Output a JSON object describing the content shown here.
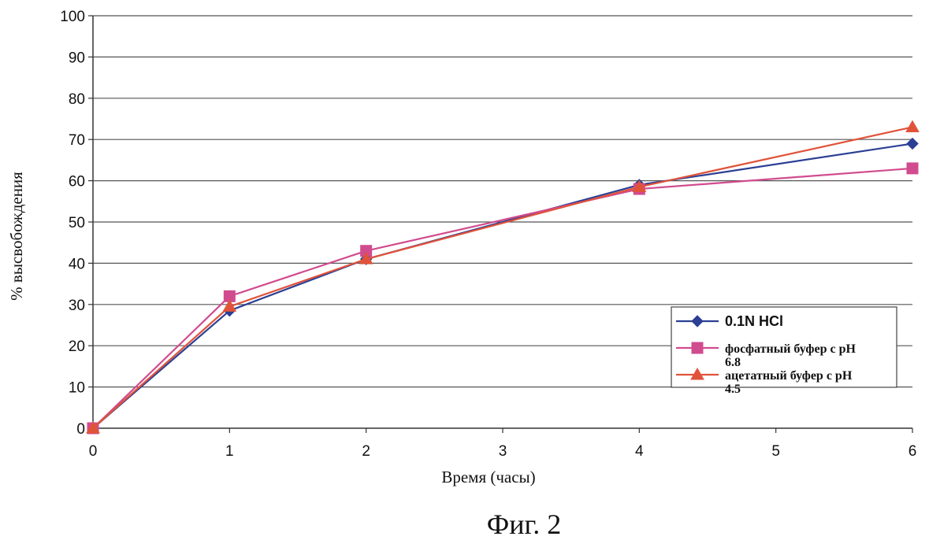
{
  "figure_caption": "Фиг. 2",
  "chart_data": {
    "type": "line",
    "xlabel": "Время (часы)",
    "ylabel": "% высвобождения",
    "xlim": [
      0,
      6
    ],
    "ylim": [
      0,
      100
    ],
    "xticks": [
      0,
      1,
      2,
      3,
      4,
      5,
      6
    ],
    "yticks": [
      0,
      10,
      20,
      30,
      40,
      50,
      60,
      70,
      80,
      90,
      100
    ],
    "grid": true,
    "legend_position": "right",
    "series": [
      {
        "name": "0.1N HCl",
        "color": "#2b3f94",
        "marker": "diamond",
        "x": [
          0,
          1,
          2,
          4,
          6
        ],
        "y": [
          0,
          28.5,
          41,
          59,
          69
        ]
      },
      {
        "name": "фосфатный буфер с pH 6.8",
        "color": "#d14b8f",
        "marker": "square",
        "x": [
          0,
          1,
          2,
          4,
          6
        ],
        "y": [
          0,
          32,
          43,
          58,
          63
        ]
      },
      {
        "name": "ацетатный буфер с pH 4.5",
        "color": "#e0533a",
        "marker": "triangle",
        "x": [
          0,
          1,
          2,
          4,
          6
        ],
        "y": [
          0,
          29.5,
          41,
          58.5,
          73
        ]
      }
    ]
  }
}
